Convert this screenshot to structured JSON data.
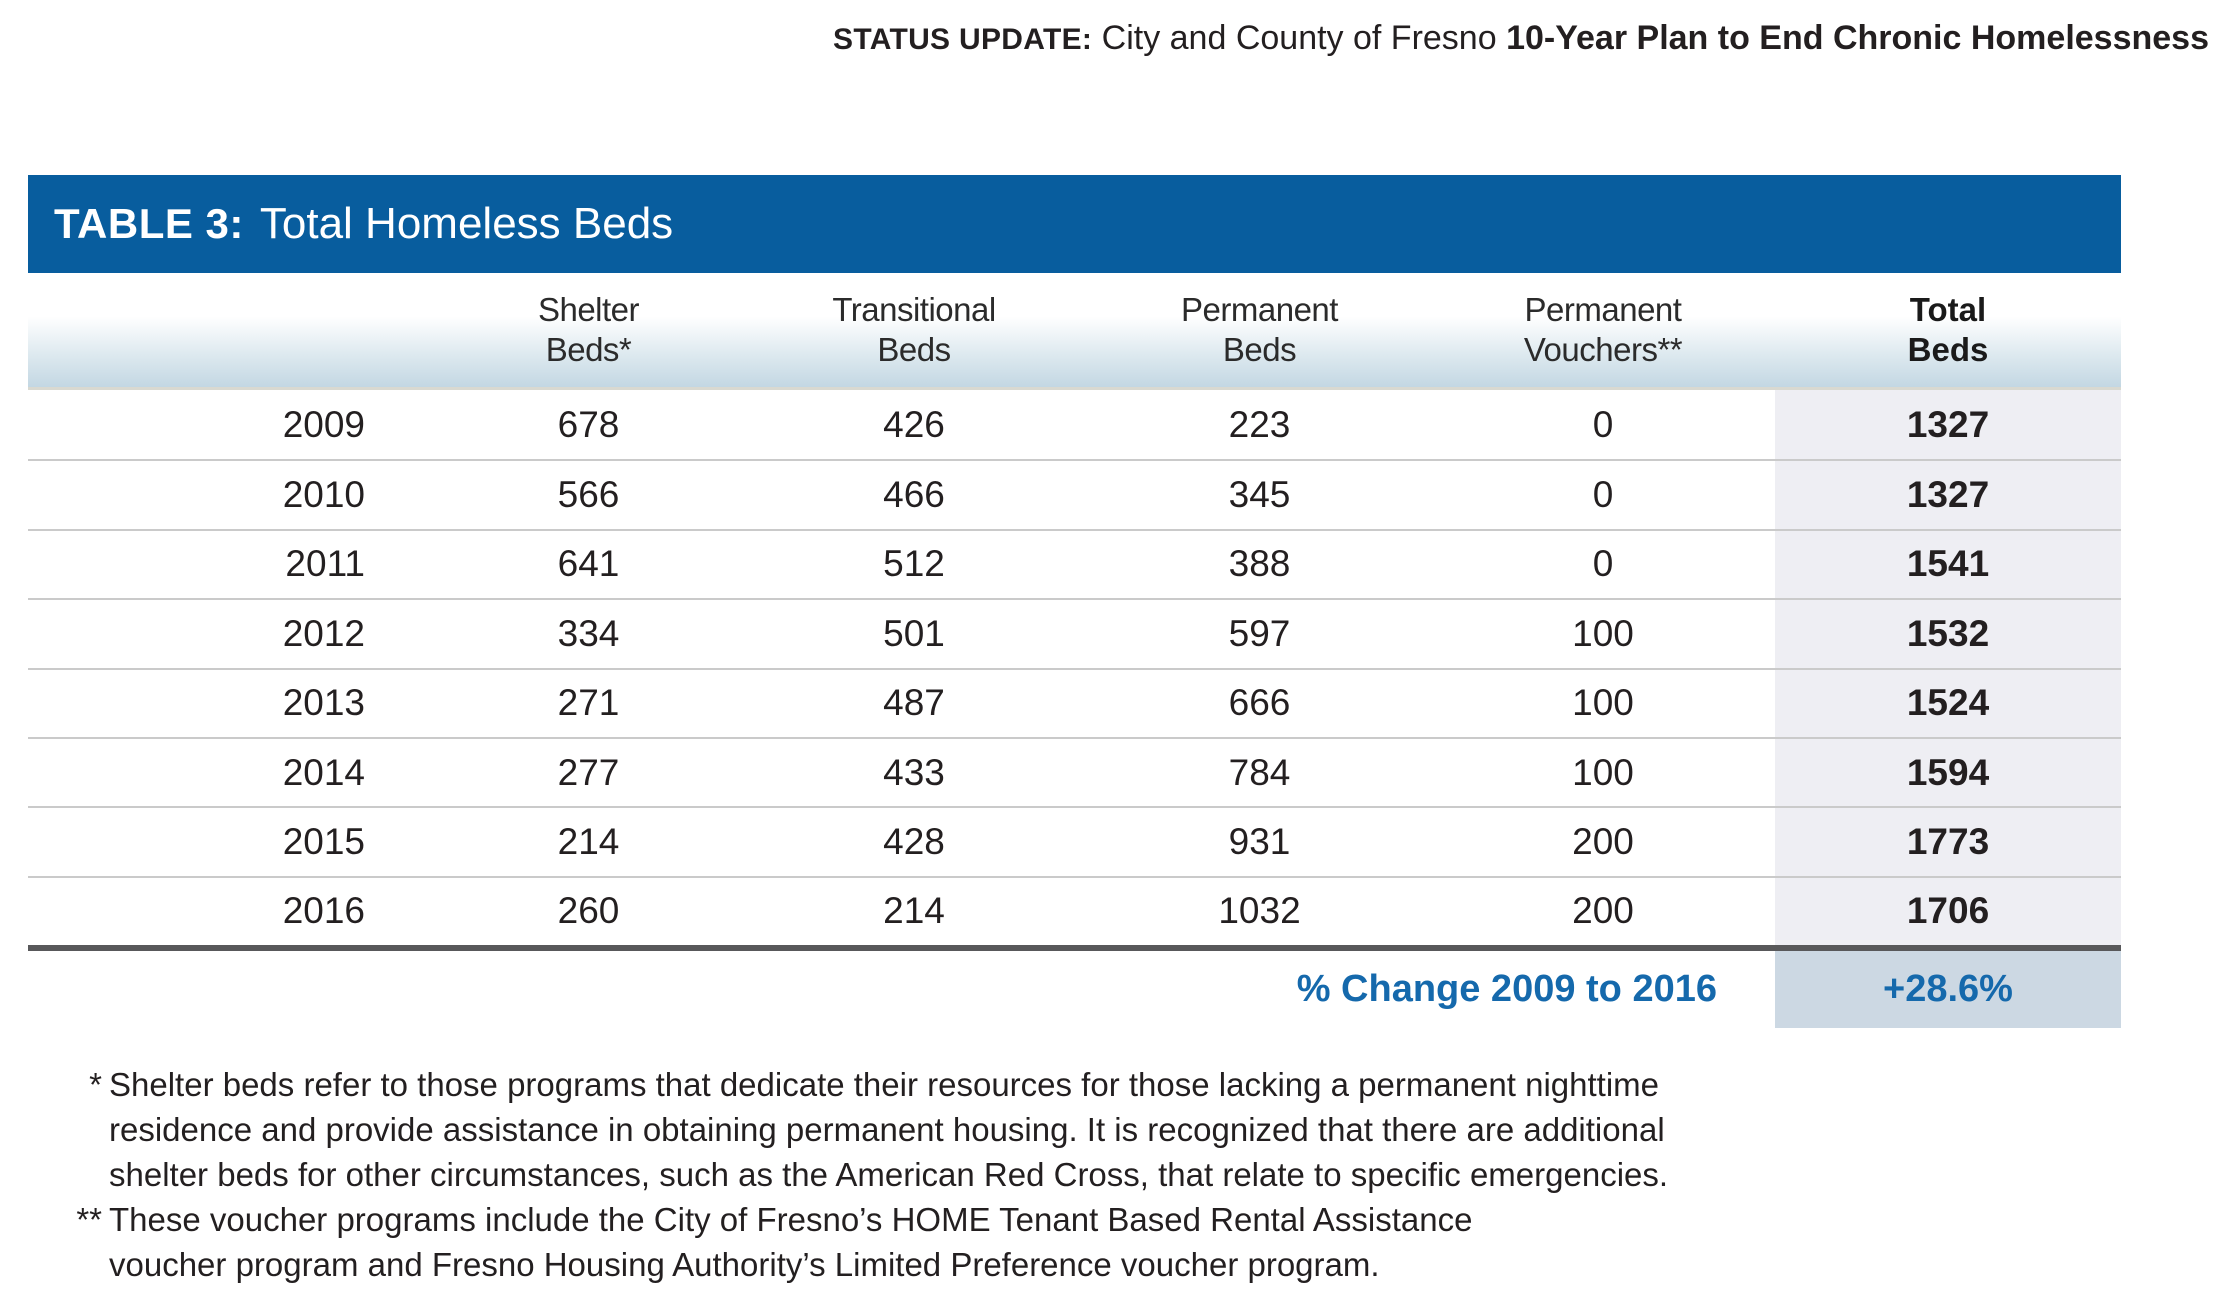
{
  "colors": {
    "table_bar_blue": "#085d9e",
    "accent_blue": "#1569ac",
    "total_column_bg": "#eeeef3",
    "footer_cell_bg": "#ccd8e3",
    "header_gradient_bottom": "#c3d7e3",
    "row_divider": "#cacaca",
    "thick_divider": "#58585a"
  },
  "page_header": {
    "prefix": "STATUS UPDATE:",
    "middle": " City and County of Fresno ",
    "suffix": "10-Year Plan to End Chronic Homelessness"
  },
  "table": {
    "label": "TABLE 3:",
    "title": "Total Homeless Beds",
    "columns": [
      {
        "line1": "",
        "line2": ""
      },
      {
        "line1": "Shelter",
        "line2": "Beds*"
      },
      {
        "line1": "Transitional",
        "line2": "Beds"
      },
      {
        "line1": "Permanent",
        "line2": "Beds"
      },
      {
        "line1": "Permanent",
        "line2": "Vouchers**"
      },
      {
        "line1": "Total",
        "line2": "Beds"
      }
    ],
    "rows": [
      {
        "year": "2009",
        "shelter": "678",
        "transitional": "426",
        "permanent": "223",
        "vouchers": "0",
        "total": "1327"
      },
      {
        "year": "2010",
        "shelter": "566",
        "transitional": "466",
        "permanent": "345",
        "vouchers": "0",
        "total": "1327"
      },
      {
        "year": "2011",
        "shelter": "641",
        "transitional": "512",
        "permanent": "388",
        "vouchers": "0",
        "total": "1541"
      },
      {
        "year": "2012",
        "shelter": "334",
        "transitional": "501",
        "permanent": "597",
        "vouchers": "100",
        "total": "1532"
      },
      {
        "year": "2013",
        "shelter": "271",
        "transitional": "487",
        "permanent": "666",
        "vouchers": "100",
        "total": "1524"
      },
      {
        "year": "2014",
        "shelter": "277",
        "transitional": "433",
        "permanent": "784",
        "vouchers": "100",
        "total": "1594"
      },
      {
        "year": "2015",
        "shelter": "214",
        "transitional": "428",
        "permanent": "931",
        "vouchers": "200",
        "total": "1773"
      },
      {
        "year": "2016",
        "shelter": "260",
        "transitional": "214",
        "permanent": "1032",
        "vouchers": "200",
        "total": "1706"
      }
    ],
    "footer": {
      "label": "% Change 2009 to 2016",
      "value": "+28.6%"
    }
  },
  "footnotes": [
    {
      "marker": "*",
      "lines": [
        "Shelter beds refer to those programs that dedicate their resources for those lacking a permanent nighttime",
        "residence and provide assistance in obtaining permanent housing. It is recognized that there are additional",
        "shelter beds for other circumstances, such as the American Red Cross, that relate to specific emergencies."
      ]
    },
    {
      "marker": "**",
      "lines": [
        "These voucher programs include the City of Fresno’s HOME Tenant Based Rental Assistance",
        "voucher program and Fresno Housing Authority’s Limited Preference voucher program."
      ]
    }
  ]
}
